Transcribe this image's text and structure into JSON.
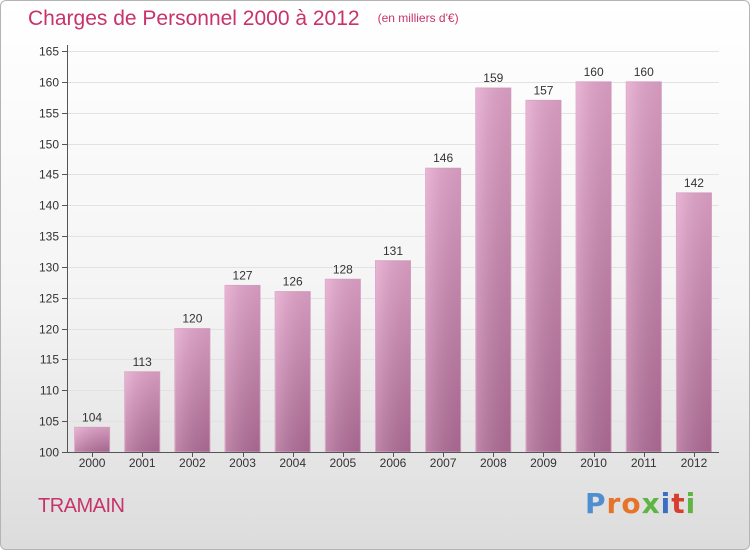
{
  "title": "Charges de Personnel 2000 à 2012",
  "subtitle": "(en milliers d'€)",
  "location": "TRAMAIN",
  "brand": {
    "letters": [
      "P",
      "r",
      "o",
      "x",
      "i",
      "t",
      "i"
    ],
    "colors": [
      "#4f8fd0",
      "#e7732b",
      "#e7732b",
      "#5fb544",
      "#3a6fc3",
      "#d63f2f",
      "#5fb544"
    ]
  },
  "colors": {
    "text_accent": "#c7336a",
    "bar_top": "#e5a6cd",
    "bar_bottom": "#b36e99",
    "axis": "#555555",
    "grid": "#e2e2e2"
  },
  "chart_data": {
    "type": "bar",
    "title": "Charges de Personnel 2000 à 2012",
    "subtitle": "(en milliers d'€)",
    "categories": [
      "2000",
      "2001",
      "2002",
      "2003",
      "2004",
      "2005",
      "2006",
      "2007",
      "2008",
      "2009",
      "2010",
      "2011",
      "2012"
    ],
    "values": [
      104,
      113,
      120,
      127,
      126,
      128,
      131,
      146,
      159,
      157,
      160,
      160,
      142
    ],
    "ylim": [
      100,
      165
    ],
    "yticks": [
      100,
      105,
      110,
      115,
      120,
      125,
      130,
      135,
      140,
      145,
      150,
      155,
      160,
      165
    ],
    "xlabel": "",
    "ylabel": "",
    "data_labels": true,
    "grid": true
  }
}
